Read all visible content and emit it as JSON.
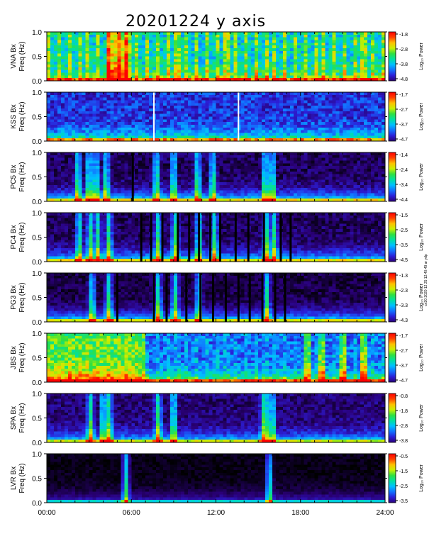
{
  "title": "20201224 y axis",
  "credit": "cv20 2020 12 25 12:40:49 ar ydp",
  "colormap": [
    "#000000",
    "#2a0078",
    "#2b1fd8",
    "#1270ff",
    "#00c0ff",
    "#00e0a0",
    "#30e040",
    "#c8f000",
    "#ffc000",
    "#ff4000",
    "#ff0000"
  ],
  "x_axis": {
    "ticks": [
      "00:00",
      "06:00",
      "12:00",
      "18:00",
      "24:00"
    ],
    "range_hours": [
      0,
      24
    ]
  },
  "colorbar_label": "Log₁₀ Power",
  "chart_data": [
    {
      "type": "heatmap",
      "panel": "VNA",
      "ylabel_station": "VNA Bx",
      "ylabel_unit": "Freq (Hz)",
      "yticks": [
        "1.0",
        "0.5",
        "0.0"
      ],
      "ylim": [
        0,
        1.0
      ],
      "xlim": [
        0,
        24
      ],
      "colorbar_ticks": [
        "-1.8",
        "-2.8",
        "-3.8",
        "-4.8"
      ],
      "clim": [
        -4.8,
        -1.8
      ],
      "base_level": 0.45,
      "low_freq_boost": 0.18,
      "speckle": 0.25,
      "stripes": 0.2,
      "bright_bursts_hours": [
        4.5,
        5.0,
        5.5
      ],
      "white_gaps_hours": []
    },
    {
      "type": "heatmap",
      "panel": "KSS",
      "ylabel_station": "KSS Bx",
      "ylabel_unit": "Freq (Hz)",
      "yticks": [
        "1.0",
        "0.5",
        "0.0"
      ],
      "ylim": [
        0,
        1.0
      ],
      "xlim": [
        0,
        24
      ],
      "colorbar_ticks": [
        "-1.7",
        "-2.7",
        "-3.7",
        "-4.7"
      ],
      "clim": [
        -4.7,
        -1.7
      ],
      "base_level": 0.22,
      "low_freq_boost": 0.3,
      "speckle": 0.2,
      "stripes": 0.0,
      "bright_bursts_hours": [],
      "white_gaps_hours": [
        7.6,
        13.6
      ]
    },
    {
      "type": "heatmap",
      "panel": "PC5",
      "ylabel_station": "PC5 Bx",
      "ylabel_unit": "Freq (Hz)",
      "yticks": [
        "1.0",
        "0.5",
        "0.0"
      ],
      "ylim": [
        0,
        1.0
      ],
      "xlim": [
        0,
        24
      ],
      "colorbar_ticks": [
        "-1.4",
        "-2.4",
        "-3.4",
        "-4.4"
      ],
      "clim": [
        -4.4,
        -1.4
      ],
      "base_level": 0.08,
      "low_freq_boost": 0.35,
      "speckle": 0.12,
      "stripes": 0.0,
      "bright_bursts_hours": [
        2.2,
        3.0,
        3.5,
        4.2,
        7.8,
        9.0,
        10.7,
        11.8,
        15.5,
        16.0
      ],
      "dark_bars_hours": [
        6.1
      ]
    },
    {
      "type": "heatmap",
      "panel": "PC4",
      "ylabel_station": "PC4 Bx",
      "ylabel_unit": "Freq (Hz)",
      "yticks": [
        "1.0",
        "0.5",
        "0.0"
      ],
      "ylim": [
        0,
        1.0
      ],
      "xlim": [
        0,
        24
      ],
      "colorbar_ticks": [
        "-1.5",
        "-2.5",
        "-3.5",
        "-4.5"
      ],
      "clim": [
        -4.5,
        -1.5
      ],
      "base_level": 0.08,
      "low_freq_boost": 0.35,
      "speckle": 0.12,
      "stripes": 0.0,
      "bright_bursts_hours": [
        2.3,
        3.1,
        3.6,
        4.4,
        7.9,
        9.1,
        10.8,
        11.9,
        15.6,
        16.1
      ],
      "dark_bars_hours": [
        6.7,
        7.4,
        8.2,
        9.3,
        10.1,
        10.8,
        11.6,
        12.3,
        13.4,
        14.3,
        15.4,
        16.6,
        17.3
      ]
    },
    {
      "type": "heatmap",
      "panel": "PG3",
      "ylabel_station": "PG3 Bx",
      "ylabel_unit": "Freq (Hz)",
      "yticks": [
        "1.0",
        "0.5",
        "0.0"
      ],
      "ylim": [
        0,
        1.0
      ],
      "xlim": [
        0,
        24
      ],
      "colorbar_ticks": [
        "-1.3",
        "-2.3",
        "-3.3",
        "-4.3"
      ],
      "clim": [
        -4.3,
        -1.3
      ],
      "base_level": 0.06,
      "low_freq_boost": 0.35,
      "speckle": 0.1,
      "stripes": 0.0,
      "bright_bursts_hours": [
        3.2,
        4.4,
        7.9,
        9.1,
        10.8,
        15.6
      ],
      "dark_bars_hours": [
        5.0,
        7.6,
        8.5,
        9.9,
        10.9,
        11.8,
        12.7,
        13.6,
        14.4,
        15.3,
        16.2,
        16.9
      ]
    },
    {
      "type": "heatmap",
      "panel": "JBS",
      "ylabel_station": "JBS Bx",
      "ylabel_unit": "Freq (Hz)",
      "yticks": [
        "1.0",
        "0.5",
        "0.0"
      ],
      "ylim": [
        0,
        1.0
      ],
      "xlim": [
        0,
        24
      ],
      "colorbar_ticks": [
        "-1.7",
        "-2.7",
        "-3.7",
        "-4.7"
      ],
      "clim": [
        -4.7,
        -1.7
      ],
      "base_level": 0.3,
      "low_freq_boost": 0.3,
      "speckle": 0.22,
      "stripes": 0.05,
      "bright_bursts_hours": [
        18.5,
        19.5,
        21.0,
        22.5
      ],
      "bright_block_hours": [
        0.0,
        7.1
      ]
    },
    {
      "type": "heatmap",
      "panel": "SPA",
      "ylabel_station": "SPA Bx",
      "ylabel_unit": "Freq (Hz)",
      "yticks": [
        "1.0",
        "0.5",
        "0.0"
      ],
      "ylim": [
        0,
        1.0
      ],
      "xlim": [
        0,
        24
      ],
      "colorbar_ticks": [
        "-0.8",
        "-1.8",
        "-2.8",
        "-3.8"
      ],
      "clim": [
        -3.8,
        -0.8
      ],
      "base_level": 0.1,
      "low_freq_boost": 0.3,
      "speckle": 0.12,
      "stripes": 0.0,
      "bright_bursts_hours": [
        3.1,
        4.0,
        4.4,
        7.9,
        9.0,
        15.4,
        15.7,
        16.0
      ],
      "dark_bars_hours": []
    },
    {
      "type": "heatmap",
      "panel": "LVR",
      "ylabel_station": "LVR Bx",
      "ylabel_unit": "Freq (Hz)",
      "yticks": [
        "1.0",
        "0.5",
        "0.0"
      ],
      "ylim": [
        0,
        1.0
      ],
      "xlim": [
        0,
        24
      ],
      "colorbar_ticks": [
        "-0.5",
        "-1.5",
        "-2.5",
        "-3.5"
      ],
      "clim": [
        -3.5,
        -0.5
      ],
      "base_level": 0.02,
      "low_freq_boost": 0.15,
      "speckle": 0.05,
      "stripes": 0.0,
      "bright_bursts_hours": [
        5.6,
        15.8
      ],
      "dark_bars_hours": []
    }
  ]
}
